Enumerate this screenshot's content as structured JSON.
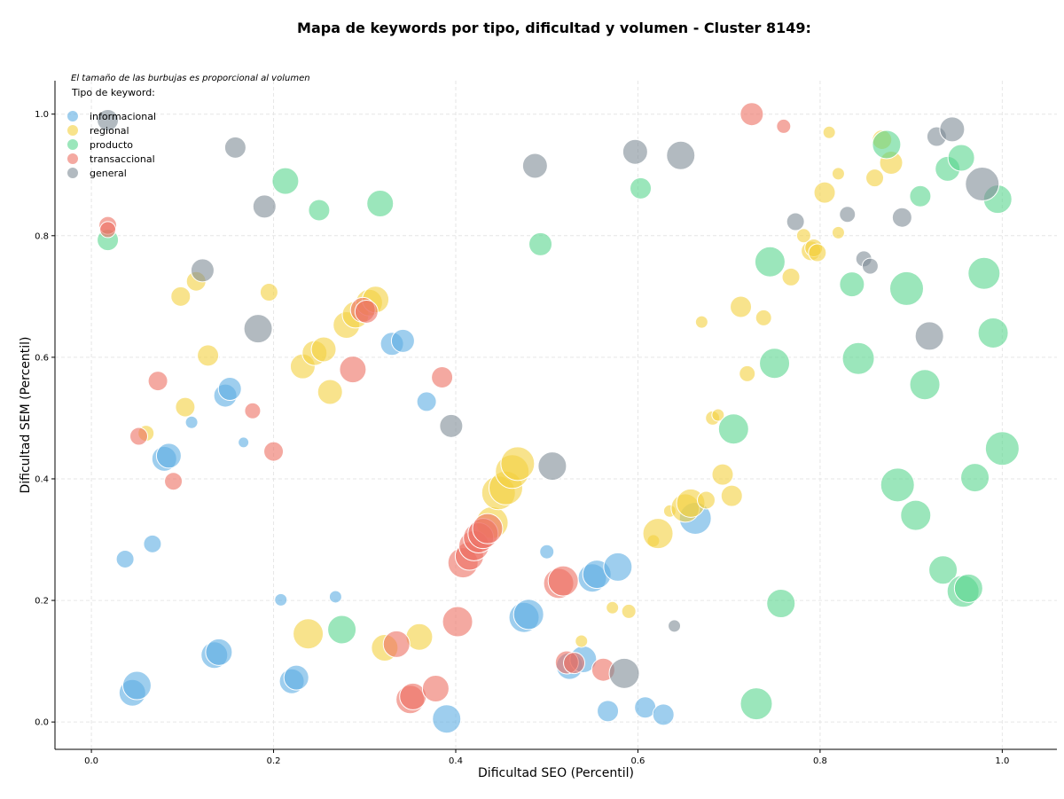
{
  "chart_data": {
    "type": "scatter",
    "title": "Mapa de keywords por tipo, dificultad y volumen - Cluster 8149:",
    "annotation": "El tamaño de las burbujas es proporcional al volumen",
    "legend_title": "Tipo de keyword:",
    "legend_placement": "top-left",
    "xlabel": "Dificultad SEO (Percentil)",
    "ylabel": "Dificultad SEM (Percentil)",
    "xlim": [
      -0.04,
      1.06
    ],
    "ylim": [
      -0.045,
      1.055
    ],
    "xticks": [
      "0.0",
      "0.2",
      "0.4",
      "0.6",
      "0.8",
      "1.0"
    ],
    "yticks": [
      "0.0",
      "0.2",
      "0.4",
      "0.6",
      "0.8",
      "1.0"
    ],
    "grid": true,
    "series": [
      {
        "name": "informacional",
        "color": "#5dade2",
        "points": [
          [
            0.037,
            0.268,
            10
          ],
          [
            0.045,
            0.048,
            15
          ],
          [
            0.05,
            0.06,
            16
          ],
          [
            0.067,
            0.293,
            10
          ],
          [
            0.08,
            0.433,
            14
          ],
          [
            0.085,
            0.438,
            14
          ],
          [
            0.11,
            0.493,
            7
          ],
          [
            0.135,
            0.11,
            15
          ],
          [
            0.14,
            0.115,
            15
          ],
          [
            0.147,
            0.537,
            13
          ],
          [
            0.152,
            0.548,
            13
          ],
          [
            0.167,
            0.46,
            6
          ],
          [
            0.208,
            0.201,
            7
          ],
          [
            0.22,
            0.067,
            14
          ],
          [
            0.225,
            0.073,
            14
          ],
          [
            0.268,
            0.206,
            7
          ],
          [
            0.33,
            0.622,
            13
          ],
          [
            0.342,
            0.627,
            13
          ],
          [
            0.368,
            0.527,
            11
          ],
          [
            0.39,
            0.005,
            16
          ],
          [
            0.475,
            0.172,
            17
          ],
          [
            0.48,
            0.177,
            17
          ],
          [
            0.5,
            0.28,
            8
          ],
          [
            0.525,
            0.092,
            15
          ],
          [
            0.54,
            0.103,
            15
          ],
          [
            0.55,
            0.237,
            16
          ],
          [
            0.555,
            0.243,
            16
          ],
          [
            0.567,
            0.018,
            12
          ],
          [
            0.578,
            0.255,
            16
          ],
          [
            0.608,
            0.024,
            12
          ],
          [
            0.628,
            0.012,
            12
          ],
          [
            0.663,
            0.335,
            18
          ]
        ]
      },
      {
        "name": "regional",
        "color": "#f4d03f",
        "points": [
          [
            0.06,
            0.475,
            9
          ],
          [
            0.098,
            0.7,
            11
          ],
          [
            0.103,
            0.518,
            11
          ],
          [
            0.115,
            0.725,
            11
          ],
          [
            0.128,
            0.603,
            12
          ],
          [
            0.195,
            0.707,
            10
          ],
          [
            0.238,
            0.145,
            17
          ],
          [
            0.232,
            0.585,
            14
          ],
          [
            0.245,
            0.607,
            14
          ],
          [
            0.255,
            0.613,
            14
          ],
          [
            0.262,
            0.543,
            14
          ],
          [
            0.28,
            0.653,
            15
          ],
          [
            0.29,
            0.67,
            15
          ],
          [
            0.305,
            0.69,
            15
          ],
          [
            0.312,
            0.695,
            15
          ],
          [
            0.322,
            0.122,
            15
          ],
          [
            0.36,
            0.14,
            15
          ],
          [
            0.44,
            0.328,
            18
          ],
          [
            0.447,
            0.377,
            19
          ],
          [
            0.455,
            0.385,
            19
          ],
          [
            0.462,
            0.412,
            19
          ],
          [
            0.468,
            0.425,
            19
          ],
          [
            0.538,
            0.133,
            7
          ],
          [
            0.572,
            0.188,
            7
          ],
          [
            0.59,
            0.182,
            8
          ],
          [
            0.617,
            0.298,
            7
          ],
          [
            0.622,
            0.31,
            17
          ],
          [
            0.635,
            0.347,
            7
          ],
          [
            0.652,
            0.352,
            16
          ],
          [
            0.658,
            0.36,
            16
          ],
          [
            0.67,
            0.658,
            7
          ],
          [
            0.675,
            0.365,
            10
          ],
          [
            0.682,
            0.5,
            8
          ],
          [
            0.688,
            0.505,
            7
          ],
          [
            0.693,
            0.407,
            12
          ],
          [
            0.703,
            0.372,
            12
          ],
          [
            0.713,
            0.683,
            12
          ],
          [
            0.72,
            0.573,
            9
          ],
          [
            0.738,
            0.665,
            9
          ],
          [
            0.768,
            0.732,
            10
          ],
          [
            0.782,
            0.8,
            8
          ],
          [
            0.79,
            0.775,
            11
          ],
          [
            0.793,
            0.78,
            10
          ],
          [
            0.797,
            0.772,
            10
          ],
          [
            0.805,
            0.871,
            12
          ],
          [
            0.81,
            0.97,
            7
          ],
          [
            0.82,
            0.902,
            7
          ],
          [
            0.82,
            0.805,
            7
          ],
          [
            0.86,
            0.895,
            10
          ],
          [
            0.868,
            0.958,
            11
          ],
          [
            0.878,
            0.92,
            13
          ]
        ]
      },
      {
        "name": "producto",
        "color": "#58d68d",
        "points": [
          [
            0.018,
            0.793,
            12
          ],
          [
            0.213,
            0.89,
            15
          ],
          [
            0.25,
            0.842,
            12
          ],
          [
            0.275,
            0.152,
            16
          ],
          [
            0.317,
            0.853,
            15
          ],
          [
            0.493,
            0.786,
            13
          ],
          [
            0.603,
            0.878,
            12
          ],
          [
            0.705,
            0.482,
            17
          ],
          [
            0.73,
            0.03,
            18
          ],
          [
            0.745,
            0.757,
            17
          ],
          [
            0.75,
            0.59,
            17
          ],
          [
            0.757,
            0.195,
            16
          ],
          [
            0.835,
            0.72,
            14
          ],
          [
            0.842,
            0.598,
            18
          ],
          [
            0.873,
            0.95,
            16
          ],
          [
            0.885,
            0.39,
            19
          ],
          [
            0.895,
            0.713,
            19
          ],
          [
            0.905,
            0.34,
            17
          ],
          [
            0.91,
            0.865,
            12
          ],
          [
            0.915,
            0.555,
            17
          ],
          [
            0.935,
            0.25,
            16
          ],
          [
            0.94,
            0.91,
            14
          ],
          [
            0.955,
            0.928,
            15
          ],
          [
            0.957,
            0.215,
            18
          ],
          [
            0.963,
            0.22,
            16
          ],
          [
            0.97,
            0.402,
            16
          ],
          [
            0.98,
            0.738,
            18
          ],
          [
            0.99,
            0.64,
            17
          ],
          [
            0.995,
            0.86,
            16
          ],
          [
            1.0,
            0.45,
            19
          ]
        ]
      },
      {
        "name": "transaccional",
        "color": "#ec7063",
        "points": [
          [
            0.018,
            0.817,
            10
          ],
          [
            0.018,
            0.81,
            9
          ],
          [
            0.052,
            0.47,
            10
          ],
          [
            0.073,
            0.561,
            11
          ],
          [
            0.09,
            0.396,
            10
          ],
          [
            0.177,
            0.512,
            9
          ],
          [
            0.2,
            0.445,
            11
          ],
          [
            0.287,
            0.58,
            15
          ],
          [
            0.298,
            0.678,
            14
          ],
          [
            0.302,
            0.675,
            13
          ],
          [
            0.335,
            0.128,
            15
          ],
          [
            0.35,
            0.037,
            16
          ],
          [
            0.353,
            0.042,
            15
          ],
          [
            0.378,
            0.055,
            15
          ],
          [
            0.385,
            0.567,
            12
          ],
          [
            0.402,
            0.165,
            17
          ],
          [
            0.408,
            0.262,
            17
          ],
          [
            0.415,
            0.273,
            16
          ],
          [
            0.42,
            0.29,
            17
          ],
          [
            0.425,
            0.303,
            17
          ],
          [
            0.43,
            0.31,
            17
          ],
          [
            0.435,
            0.318,
            17
          ],
          [
            0.513,
            0.228,
            17
          ],
          [
            0.518,
            0.232,
            17
          ],
          [
            0.522,
            0.098,
            13
          ],
          [
            0.53,
            0.097,
            12
          ],
          [
            0.562,
            0.086,
            13
          ],
          [
            0.725,
            1.0,
            13
          ],
          [
            0.76,
            0.98,
            8
          ]
        ]
      },
      {
        "name": "general",
        "color": "#7f8c96",
        "points": [
          [
            0.018,
            0.99,
            12
          ],
          [
            0.122,
            0.743,
            13
          ],
          [
            0.158,
            0.945,
            12
          ],
          [
            0.19,
            0.848,
            13
          ],
          [
            0.183,
            0.647,
            16
          ],
          [
            0.395,
            0.487,
            13
          ],
          [
            0.487,
            0.915,
            14
          ],
          [
            0.506,
            0.421,
            16
          ],
          [
            0.585,
            0.08,
            17
          ],
          [
            0.597,
            0.938,
            14
          ],
          [
            0.64,
            0.158,
            7
          ],
          [
            0.647,
            0.932,
            16
          ],
          [
            0.773,
            0.823,
            10
          ],
          [
            0.83,
            0.835,
            9
          ],
          [
            0.848,
            0.762,
            9
          ],
          [
            0.855,
            0.75,
            9
          ],
          [
            0.89,
            0.83,
            11
          ],
          [
            0.92,
            0.635,
            16
          ],
          [
            0.928,
            0.963,
            11
          ],
          [
            0.945,
            0.975,
            14
          ],
          [
            0.978,
            0.885,
            19
          ]
        ]
      }
    ]
  }
}
